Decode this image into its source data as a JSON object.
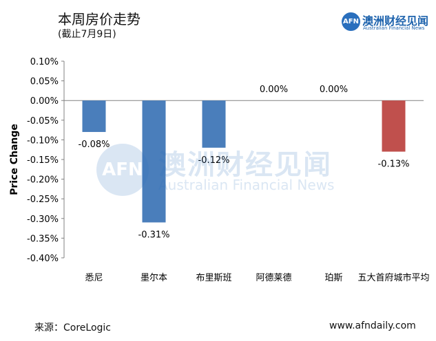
{
  "header": {
    "title": "本周房价走势",
    "subtitle": "(截止7月9日)"
  },
  "logo": {
    "badge": "AFN",
    "name_cn": "澳洲财经见闻",
    "name_en": "Australian Financial News"
  },
  "watermark": {
    "badge": "AFN",
    "name_cn": "澳洲财经见闻",
    "name_en": "Australian Financial News"
  },
  "footer": {
    "source": "来源：CoreLogic",
    "website": "www.afndaily.com"
  },
  "chart_data": {
    "type": "bar",
    "ylabel": "Price Change",
    "ylim": [
      -0.4,
      0.1
    ],
    "yticks": [
      0.1,
      0.05,
      0.0,
      -0.05,
      -0.1,
      -0.15,
      -0.2,
      -0.25,
      -0.3,
      -0.35,
      -0.4
    ],
    "ytick_labels": [
      "0.10%",
      "0.05%",
      "0.00%",
      "-0.05%",
      "-0.10%",
      "-0.15%",
      "-0.20%",
      "-0.25%",
      "-0.30%",
      "-0.35%",
      "-0.40%"
    ],
    "categories": [
      "悉尼",
      "墨尔本",
      "布里斯班",
      "阿德莱德",
      "珀斯",
      "五大首府城市平均"
    ],
    "values": [
      -0.08,
      -0.31,
      -0.12,
      0.0,
      0.0,
      -0.13
    ],
    "data_labels": [
      "-0.08%",
      "-0.31%",
      "-0.12%",
      "0.00%",
      "0.00%",
      "-0.13%"
    ],
    "colors": [
      "#4a7ebb",
      "#4a7ebb",
      "#4a7ebb",
      "#4a7ebb",
      "#4a7ebb",
      "#c0504d"
    ],
    "grid": false,
    "legend": "none"
  }
}
